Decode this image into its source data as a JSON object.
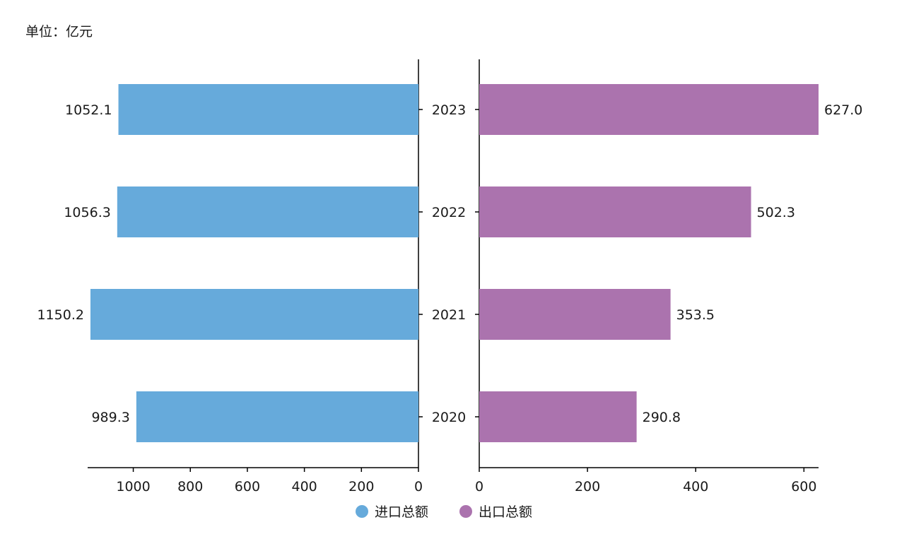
{
  "unit_label": "单位：亿元",
  "colors": {
    "import": "#66aadb",
    "export": "#ab73ae",
    "axis": "#000000",
    "text": "#1a1a1a"
  },
  "chart_data": {
    "type": "bar",
    "orientation": "horizontal",
    "layout": "butterfly",
    "title": "",
    "categories": [
      "2023",
      "2022",
      "2021",
      "2020"
    ],
    "series": [
      {
        "name": "进口总额",
        "values": [
          1052.1,
          1056.3,
          1150.2,
          989.3
        ],
        "data_labels": [
          "1052.1",
          "1056.3",
          "1150.2",
          "989.3"
        ],
        "color": "#66aadb",
        "side": "left",
        "xlim": [
          1160,
          0
        ],
        "ticks": [
          1000,
          800,
          600,
          400,
          200,
          0
        ]
      },
      {
        "name": "出口总额",
        "values": [
          627.0,
          502.3,
          353.5,
          290.8
        ],
        "data_labels": [
          "627.0",
          "502.3",
          "353.5",
          "290.8"
        ],
        "color": "#ab73ae",
        "side": "right",
        "xlim": [
          0,
          627
        ],
        "ticks": [
          0,
          200,
          400,
          600
        ]
      }
    ],
    "legend": {
      "position": "bottom-center",
      "entries": [
        "进口总额",
        "出口总额"
      ]
    },
    "grid": false
  }
}
